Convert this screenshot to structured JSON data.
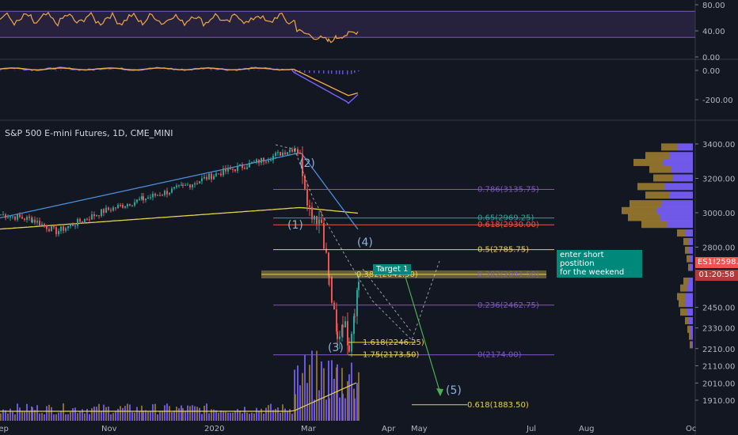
{
  "title": "S&P 500 E-mini Futures, 1D, CME_MINI",
  "colors": {
    "background": "#131722",
    "up": "#26a69a",
    "down": "#ef5350",
    "rsi": "#f0a64a",
    "macd_signal": "#f0a64a",
    "macd_line": "#7b61ff",
    "band": "#7e57c2",
    "sma_short": "#4a90d9",
    "sma_long": "#e6d24a",
    "volume_up": "#7b61ff",
    "volume_down": "#9c7a2f",
    "fib": "#7e57c2",
    "fib_highlight": "#c9b458",
    "note": "#00897b"
  },
  "rsi_panel": {
    "ticks": [
      "80.00",
      "40.00",
      "0.00"
    ],
    "upper": 70,
    "lower": 30
  },
  "macd_panel": {
    "ticks": [
      "0.00",
      "-200.00"
    ]
  },
  "price_panel": {
    "ticks": [
      "3400.00",
      "3200.00",
      "3000.00",
      "2800.00",
      "2600.00",
      "2450.00",
      "2330.00",
      "2210.00",
      "2110.00",
      "2010.00",
      "1910.00"
    ],
    "symbol_tag": "ES1!",
    "last_price": "2598.25",
    "countdown": "01:20:58"
  },
  "x_axis": {
    "labels": [
      "Sep",
      "Nov",
      "2020",
      "Mar",
      "Apr",
      "May",
      "Jul",
      "Aug",
      "Oc"
    ]
  },
  "annotations": {
    "fib_levels": [
      {
        "label": "0.786(3135.75)",
        "price": 3135.75
      },
      {
        "label": "0.65(2969.25)",
        "price": 2969.25
      },
      {
        "label": "0.618(2930.00)",
        "price": 2930.0
      },
      {
        "label": "0.5(2785.75)",
        "price": 2785.75
      },
      {
        "label": "0.382(2641.50)",
        "price": 2641.5
      },
      {
        "label": "0.382(2641.50)",
        "price": 2641.5
      },
      {
        "label": "0.236(2462.75)",
        "price": 2462.75
      },
      {
        "label": "0(2174.00)",
        "price": 2174.0
      },
      {
        "label": "1.618(2246.25)",
        "price": 2246.25
      },
      {
        "label": "1.75(2173.50)",
        "price": 2173.5
      },
      {
        "label": "0.618(1883.50)",
        "price": 1883.5
      }
    ],
    "waves": [
      "(1)",
      "(2)",
      "(3)",
      "(4)",
      "(5)"
    ],
    "target_label": "Target 1",
    "note_line1": "enter short postition",
    "note_line2": "for the weekend"
  },
  "chart_data": {
    "type": "candlestick",
    "title": "S&P 500 E-mini Futures, 1D, CME_MINI",
    "price_range": [
      1870,
      3460
    ],
    "x_labels": [
      "Sep",
      "Nov",
      "2020",
      "Mar",
      "Apr",
      "May",
      "Jul",
      "Aug",
      "Oc"
    ],
    "close_path": [
      [
        "Sep",
        2990
      ],
      [
        "Oct",
        2950
      ],
      [
        "Oct",
        2890
      ],
      [
        "Nov",
        3080
      ],
      [
        "Dec",
        3140
      ],
      [
        "2020",
        3230
      ],
      [
        "Jan",
        3290
      ],
      [
        "Feb",
        3340
      ],
      [
        "Feb",
        3380
      ],
      [
        "Mar",
        2980
      ],
      [
        "Mar",
        2540
      ],
      [
        "Mar",
        2240
      ],
      [
        "Mar",
        2400
      ],
      [
        "Apr",
        2598.25
      ]
    ],
    "series": [
      {
        "name": "ES1!",
        "last": 2598.25
      }
    ],
    "rsi": {
      "range": [
        0,
        100
      ],
      "levels": [
        30,
        70
      ]
    },
    "macd": {
      "range": [
        -250,
        50
      ]
    }
  }
}
